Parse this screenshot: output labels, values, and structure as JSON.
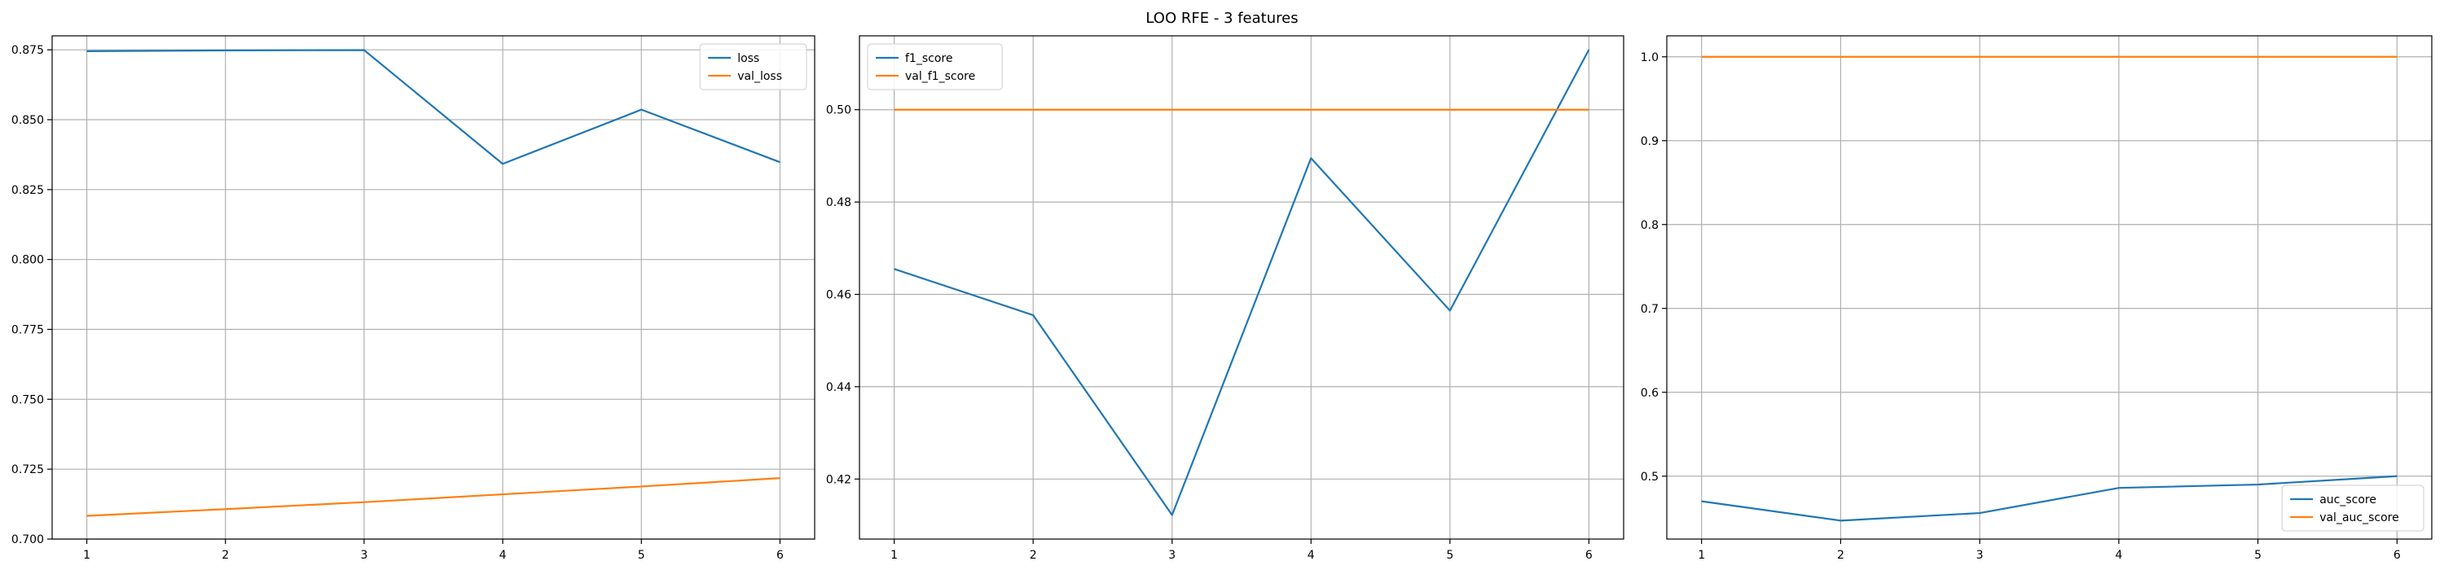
{
  "figure": {
    "title": "LOO RFE - 3 features"
  },
  "colors": {
    "series_1": "#1f77b4",
    "series_2": "#ff7f0e",
    "grid": "#b0b0b0",
    "axes": "#000000"
  },
  "chart_data": [
    {
      "type": "line",
      "title": "",
      "xlabel": "",
      "ylabel": "",
      "grid": true,
      "legend_position": "top-right",
      "x": [
        1,
        2,
        3,
        4,
        5,
        6
      ],
      "xlim": [
        0.75,
        6.25
      ],
      "ylim": [
        0.7,
        0.88
      ],
      "xticks": [
        1,
        2,
        3,
        4,
        5,
        6
      ],
      "yticks": [
        0.7,
        0.725,
        0.75,
        0.775,
        0.8,
        0.825,
        0.85,
        0.875
      ],
      "ytick_labels": [
        "0.700",
        "0.725",
        "0.750",
        "0.775",
        "0.800",
        "0.825",
        "0.850",
        "0.875"
      ],
      "series": [
        {
          "name": "loss",
          "values": [
            0.8745,
            0.8748,
            0.8749,
            0.8342,
            0.8536,
            0.8348
          ]
        },
        {
          "name": "val_loss",
          "values": [
            0.7083,
            0.7107,
            0.7132,
            0.716,
            0.7188,
            0.7218
          ]
        }
      ]
    },
    {
      "type": "line",
      "title": "",
      "xlabel": "",
      "ylabel": "",
      "grid": true,
      "legend_position": "top-left",
      "x": [
        1,
        2,
        3,
        4,
        5,
        6
      ],
      "xlim": [
        0.75,
        6.25
      ],
      "ylim": [
        0.407,
        0.516
      ],
      "xticks": [
        1,
        2,
        3,
        4,
        5,
        6
      ],
      "yticks": [
        0.42,
        0.44,
        0.46,
        0.48,
        0.5
      ],
      "ytick_labels": [
        "0.42",
        "0.44",
        "0.46",
        "0.48",
        "0.50"
      ],
      "series": [
        {
          "name": "f1_score",
          "values": [
            0.4655,
            0.4555,
            0.4122,
            0.4895,
            0.4565,
            0.513
          ]
        },
        {
          "name": "val_f1_score",
          "values": [
            0.5,
            0.5,
            0.5,
            0.5,
            0.5,
            0.5
          ]
        }
      ]
    },
    {
      "type": "line",
      "title": "",
      "xlabel": "",
      "ylabel": "",
      "grid": true,
      "legend_position": "bottom-right",
      "x": [
        1,
        2,
        3,
        4,
        5,
        6
      ],
      "xlim": [
        0.75,
        6.25
      ],
      "ylim": [
        0.425,
        1.025
      ],
      "xticks": [
        1,
        2,
        3,
        4,
        5,
        6
      ],
      "yticks": [
        0.5,
        0.6,
        0.7,
        0.8,
        0.9,
        1.0
      ],
      "ytick_labels": [
        "0.5",
        "0.6",
        "0.7",
        "0.8",
        "0.9",
        "1.0"
      ],
      "series": [
        {
          "name": "auc_score",
          "values": [
            0.47,
            0.447,
            0.456,
            0.486,
            0.49,
            0.5
          ]
        },
        {
          "name": "val_auc_score",
          "values": [
            1.0,
            1.0,
            1.0,
            1.0,
            1.0,
            1.0
          ]
        }
      ]
    }
  ]
}
